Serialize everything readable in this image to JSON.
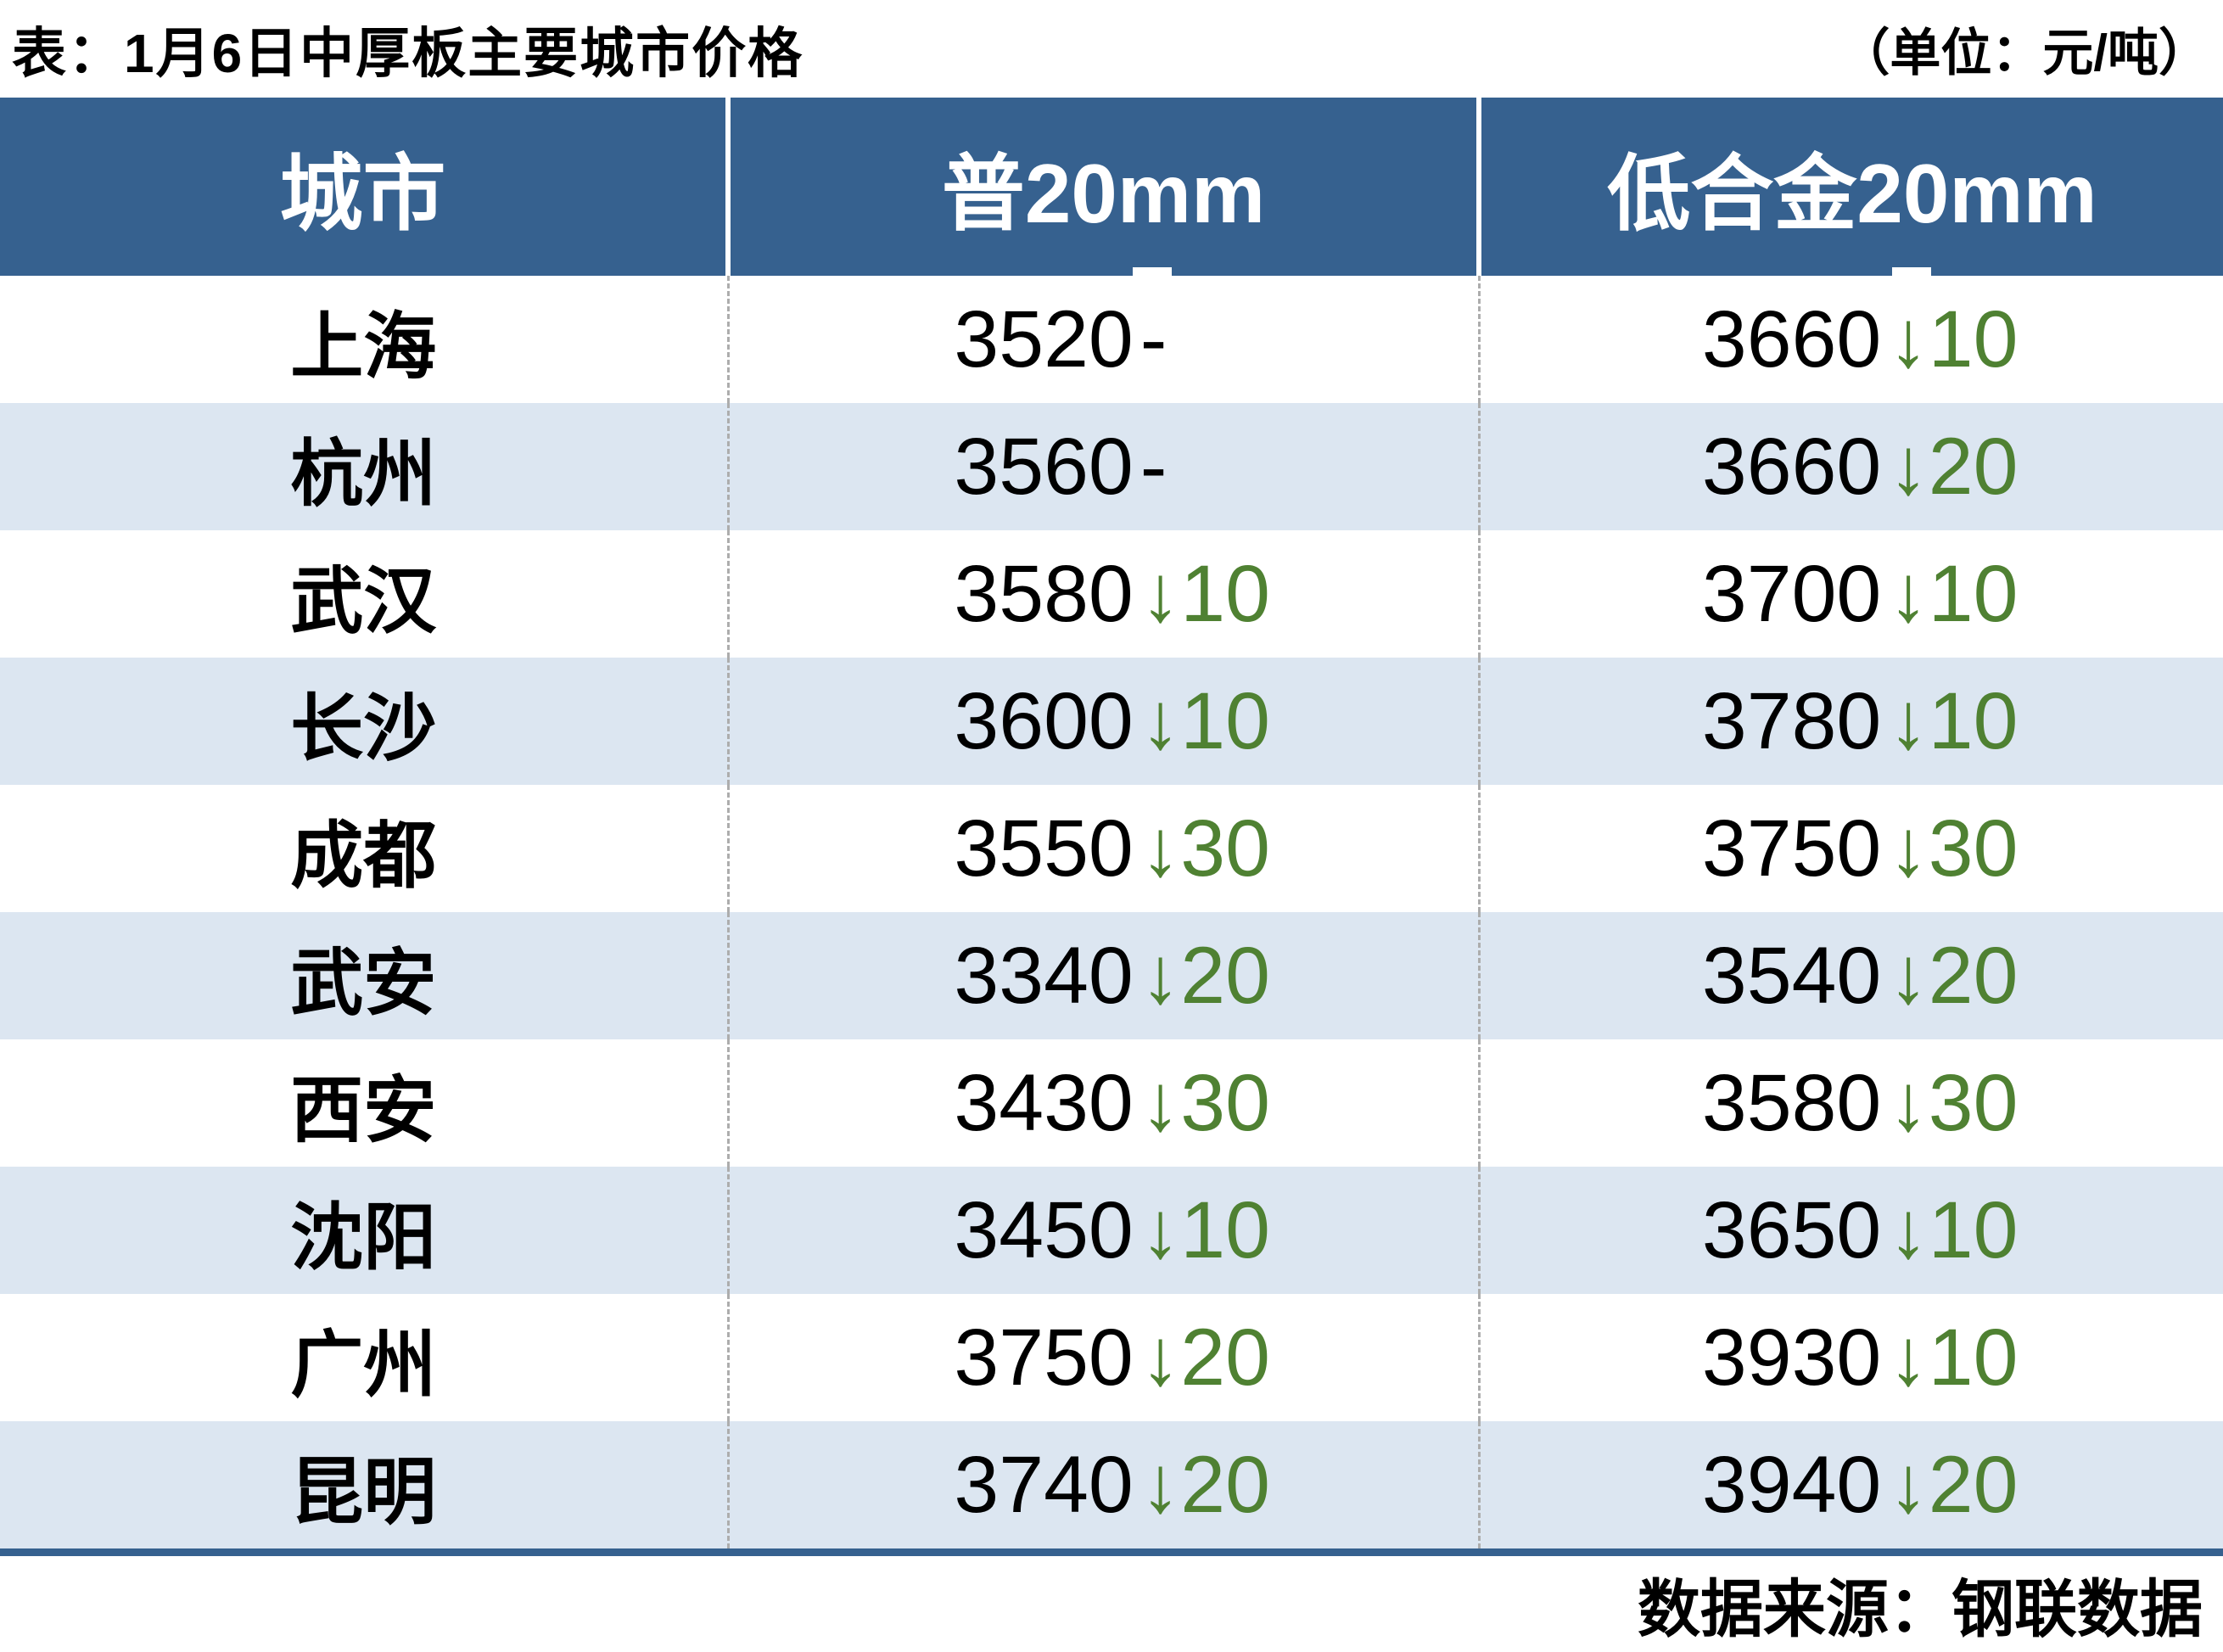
{
  "title": "表：1月6日中厚板主要城市价格",
  "unit_label": "（单位：元/吨）",
  "source_label": "数据来源：钢联数据",
  "colors": {
    "header_bg": "#36618F",
    "alt_row_bg": "#DCE6F1",
    "down_green": "#4F8132",
    "divider_gray": "#ADADAD",
    "text_black": "#000000",
    "header_text": "#FFFFFF"
  },
  "table": {
    "headers": [
      "城市",
      "普20mm",
      "低合金20mm"
    ],
    "rows": [
      {
        "city": "上海",
        "p_price": "3520",
        "p_change": "-",
        "p_dir": "flat",
        "a_price": "3660",
        "a_change": "↓10",
        "a_dir": "down"
      },
      {
        "city": "杭州",
        "p_price": "3560",
        "p_change": "-",
        "p_dir": "flat",
        "a_price": "3660",
        "a_change": "↓20",
        "a_dir": "down"
      },
      {
        "city": "武汉",
        "p_price": "3580",
        "p_change": "↓10",
        "p_dir": "down",
        "a_price": "3700",
        "a_change": "↓10",
        "a_dir": "down"
      },
      {
        "city": "长沙",
        "p_price": "3600",
        "p_change": "↓10",
        "p_dir": "down",
        "a_price": "3780",
        "a_change": "↓10",
        "a_dir": "down"
      },
      {
        "city": "成都",
        "p_price": "3550",
        "p_change": "↓30",
        "p_dir": "down",
        "a_price": "3750",
        "a_change": "↓30",
        "a_dir": "down"
      },
      {
        "city": "武安",
        "p_price": "3340",
        "p_change": "↓20",
        "p_dir": "down",
        "a_price": "3540",
        "a_change": "↓20",
        "a_dir": "down"
      },
      {
        "city": "西安",
        "p_price": "3430",
        "p_change": "↓30",
        "p_dir": "down",
        "a_price": "3580",
        "a_change": "↓30",
        "a_dir": "down"
      },
      {
        "city": "沈阳",
        "p_price": "3450",
        "p_change": "↓10",
        "p_dir": "down",
        "a_price": "3650",
        "a_change": "↓10",
        "a_dir": "down"
      },
      {
        "city": "广州",
        "p_price": "3750",
        "p_change": "↓20",
        "p_dir": "down",
        "a_price": "3930",
        "a_change": "↓10",
        "a_dir": "down"
      },
      {
        "city": "昆明",
        "p_price": "3740",
        "p_change": "↓20",
        "p_dir": "down",
        "a_price": "3940",
        "a_change": "↓20",
        "a_dir": "down"
      }
    ]
  },
  "chart_data": {
    "type": "table",
    "title": "1月6日中厚板主要城市价格",
    "unit": "元/吨",
    "columns": [
      "城市",
      "普20mm",
      "低合金20mm"
    ],
    "rows": [
      {
        "city": "上海",
        "pu_20mm": 3520,
        "pu_20mm_change": 0,
        "low_alloy_20mm": 3660,
        "low_alloy_20mm_change": -10
      },
      {
        "city": "杭州",
        "pu_20mm": 3560,
        "pu_20mm_change": 0,
        "low_alloy_20mm": 3660,
        "low_alloy_20mm_change": -20
      },
      {
        "city": "武汉",
        "pu_20mm": 3580,
        "pu_20mm_change": -10,
        "low_alloy_20mm": 3700,
        "low_alloy_20mm_change": -10
      },
      {
        "city": "长沙",
        "pu_20mm": 3600,
        "pu_20mm_change": -10,
        "low_alloy_20mm": 3780,
        "low_alloy_20mm_change": -10
      },
      {
        "city": "成都",
        "pu_20mm": 3550,
        "pu_20mm_change": -30,
        "low_alloy_20mm": 3750,
        "low_alloy_20mm_change": -30
      },
      {
        "city": "武安",
        "pu_20mm": 3340,
        "pu_20mm_change": -20,
        "low_alloy_20mm": 3540,
        "low_alloy_20mm_change": -20
      },
      {
        "city": "西安",
        "pu_20mm": 3430,
        "pu_20mm_change": -30,
        "low_alloy_20mm": 3580,
        "low_alloy_20mm_change": -30
      },
      {
        "city": "沈阳",
        "pu_20mm": 3450,
        "pu_20mm_change": -10,
        "low_alloy_20mm": 3650,
        "low_alloy_20mm_change": -10
      },
      {
        "city": "广州",
        "pu_20mm": 3750,
        "pu_20mm_change": -20,
        "low_alloy_20mm": 3930,
        "low_alloy_20mm_change": -10
      },
      {
        "city": "昆明",
        "pu_20mm": 3740,
        "pu_20mm_change": -20,
        "low_alloy_20mm": 3940,
        "low_alloy_20mm_change": -20
      }
    ],
    "source": "钢联数据"
  }
}
